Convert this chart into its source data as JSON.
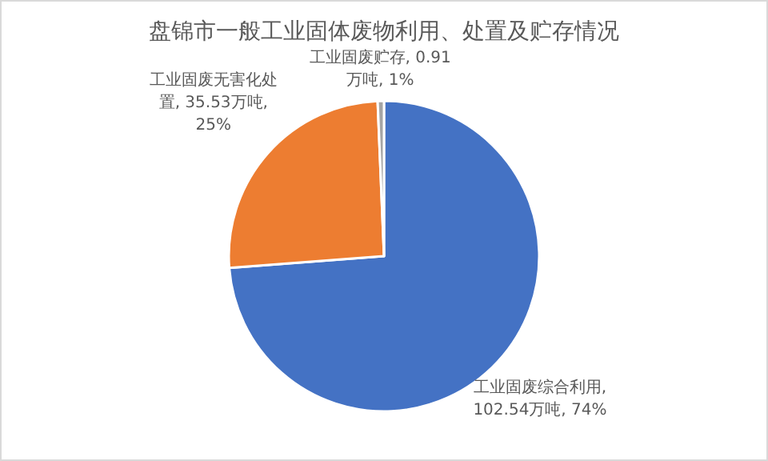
{
  "chart_data": {
    "type": "pie",
    "title": "盘锦市一般工业固体废物利用、处置及贮存情况",
    "categories": [
      "工业固废综合利用",
      "工业固废无害化处置",
      "工业固废贮存"
    ],
    "values": [
      102.54,
      35.53,
      0.91
    ],
    "colors": [
      "#4472c4",
      "#ed7d31",
      "#a5a5a5"
    ],
    "value_labels": [
      ", 102.54万吨, 74%",
      ", 35.53万吨, 25%",
      ", 0.91万吨, 1%"
    ]
  }
}
